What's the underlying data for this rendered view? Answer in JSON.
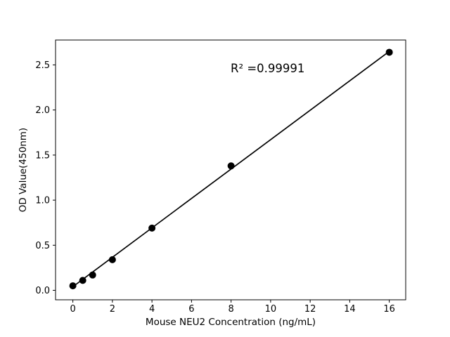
{
  "chart_data": {
    "type": "scatter",
    "title": "",
    "xlabel": "Mouse NEU2 Concentration (ng/mL)",
    "ylabel": "OD Value(450nm)",
    "annotation": "R² =0.99991",
    "x": [
      0,
      0.5,
      1,
      2,
      4,
      8,
      16
    ],
    "y": [
      0.05,
      0.11,
      0.17,
      0.34,
      0.69,
      1.38,
      2.64
    ],
    "fit_line": {
      "x": [
        0,
        16
      ],
      "y": [
        0.04,
        2.65
      ]
    },
    "xticks": [
      0,
      2,
      4,
      6,
      8,
      10,
      12,
      14,
      16
    ],
    "xtick_labels": [
      "0",
      "2",
      "4",
      "6",
      "8",
      "10",
      "12",
      "14",
      "16"
    ],
    "yticks": [
      0.0,
      0.5,
      1.0,
      1.5,
      2.0,
      2.5
    ],
    "ytick_labels": [
      "0.0",
      "0.5",
      "1.0",
      "1.5",
      "2.0",
      "2.5"
    ],
    "xlim": [
      -0.875,
      16.83
    ],
    "ylim": [
      -0.105,
      2.776
    ],
    "grid": false,
    "legend": null,
    "marker_color": "#000000",
    "line_color": "#000000",
    "background_color": "#ffffff"
  }
}
